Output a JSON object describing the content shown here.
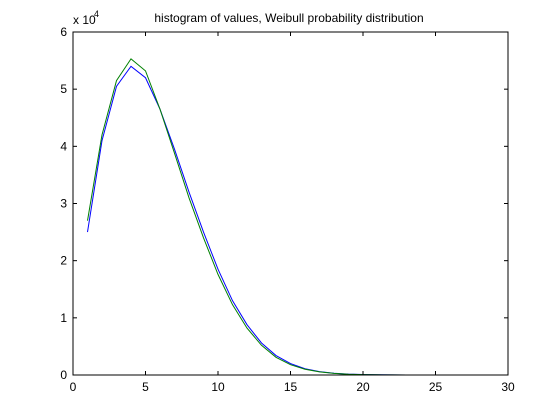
{
  "chart_data": {
    "type": "line",
    "title": "histogram of values, Weibull probability distribution",
    "xlabel": "",
    "ylabel": "",
    "xlim": [
      0,
      30
    ],
    "ylim": [
      0,
      60000
    ],
    "x_ticks": [
      "0",
      "5",
      "10",
      "15",
      "20",
      "25",
      "30"
    ],
    "y_ticks": [
      "0",
      "1",
      "2",
      "3",
      "4",
      "5",
      "6"
    ],
    "y_multiplier_base": "x 10",
    "y_multiplier_exp": "4",
    "grid": false,
    "legend": "none",
    "x": [
      1,
      2,
      3,
      4,
      5,
      6,
      7,
      8,
      9,
      10,
      11,
      12,
      13,
      14,
      15,
      16,
      17,
      18,
      19,
      20,
      21,
      22,
      23,
      24,
      25,
      26,
      27,
      28,
      29,
      30
    ],
    "series": [
      {
        "color": "#0000ff",
        "values": [
          25000,
          41000,
          50500,
          54000,
          52000,
          46500,
          39500,
          32000,
          25000,
          18500,
          13000,
          8800,
          5600,
          3400,
          2000,
          1100,
          600,
          300,
          150,
          80,
          40,
          20,
          10,
          5,
          3,
          2,
          1,
          0,
          0,
          0
        ]
      },
      {
        "color": "#008000",
        "values": [
          27000,
          42000,
          51500,
          55300,
          53200,
          46500,
          38800,
          31000,
          24000,
          17600,
          12300,
          8200,
          5200,
          3100,
          1800,
          1000,
          550,
          280,
          140,
          70,
          35,
          18,
          9,
          4,
          2,
          1,
          0,
          0,
          0,
          0
        ]
      }
    ]
  }
}
